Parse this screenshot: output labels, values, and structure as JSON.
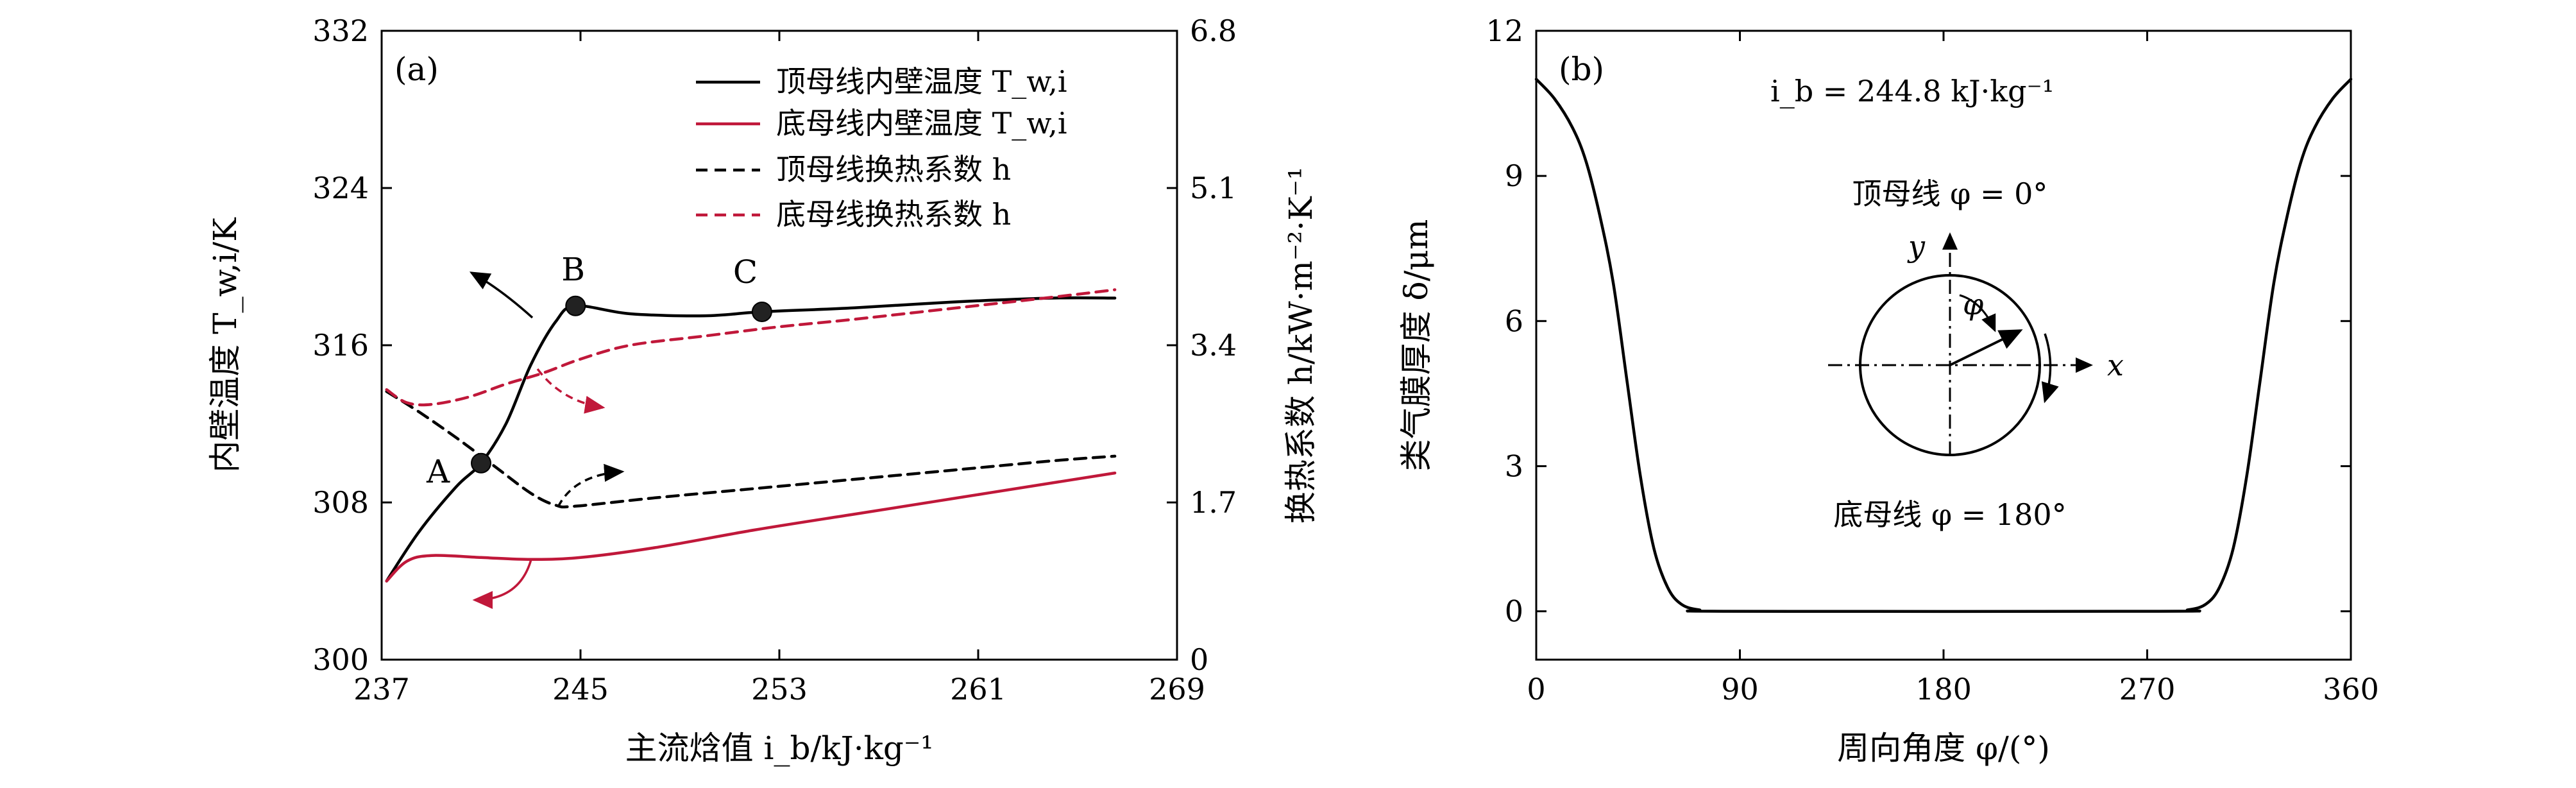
{
  "chart_data": [
    {
      "panel": "(a)",
      "type": "line",
      "xlabel": "主流焓值 i_b/kJ·kg⁻¹",
      "ylabel": "内壁温度 T_w,i/K",
      "ylabel_right": "换热系数 h/kW·m⁻²·K⁻¹",
      "xlim": [
        237,
        269
      ],
      "ylim": [
        300,
        332
      ],
      "ylim_right": [
        0,
        6.8
      ],
      "x_ticks": [
        "237",
        "245",
        "253",
        "261",
        "269"
      ],
      "y_ticks": [
        "300",
        "308",
        "316",
        "324",
        "332"
      ],
      "y_ticks_right": [
        "0",
        "1.7",
        "3.4",
        "5.1",
        "6.8"
      ],
      "legend_position": "top-right",
      "series": [
        {
          "name": "顶母线内壁温度 T_w,i",
          "axis": "left",
          "color": "#000000",
          "style": "solid",
          "points": [
            [
              237.2,
              304.0
            ],
            [
              238.5,
              306.5
            ],
            [
              240.0,
              308.8
            ],
            [
              241.0,
              310.0
            ],
            [
              242.0,
              312.0
            ],
            [
              243.0,
              315.0
            ],
            [
              244.0,
              317.2
            ],
            [
              244.8,
              318.0
            ],
            [
              247.0,
              317.6
            ],
            [
              250.0,
              317.5
            ],
            [
              252.3,
              317.7
            ],
            [
              256.0,
              317.9
            ],
            [
              260.0,
              318.2
            ],
            [
              264.0,
              318.4
            ],
            [
              266.5,
              318.4
            ]
          ]
        },
        {
          "name": "底母线内壁温度 T_w,i",
          "axis": "left",
          "color": "#c0183a",
          "style": "solid",
          "points": [
            [
              237.2,
              304.0
            ],
            [
              238.0,
              305.0
            ],
            [
              239.0,
              305.3
            ],
            [
              241.0,
              305.2
            ],
            [
              243.0,
              305.1
            ],
            [
              245.0,
              305.2
            ],
            [
              248.0,
              305.7
            ],
            [
              252.0,
              306.6
            ],
            [
              256.0,
              307.4
            ],
            [
              260.0,
              308.2
            ],
            [
              264.0,
              309.0
            ],
            [
              266.5,
              309.5
            ]
          ]
        },
        {
          "name": "顶母线换热系数 h",
          "axis": "right",
          "color": "#000000",
          "style": "dashed",
          "points": [
            [
              237.2,
              2.9
            ],
            [
              238.5,
              2.68
            ],
            [
              240.0,
              2.4
            ],
            [
              241.5,
              2.1
            ],
            [
              243.0,
              1.8
            ],
            [
              244.0,
              1.67
            ],
            [
              244.8,
              1.66
            ],
            [
              248.0,
              1.75
            ],
            [
              252.0,
              1.85
            ],
            [
              256.0,
              1.95
            ],
            [
              260.0,
              2.05
            ],
            [
              264.0,
              2.15
            ],
            [
              266.5,
              2.2
            ]
          ]
        },
        {
          "name": "底母线换热系数 h",
          "axis": "right",
          "color": "#c0183a",
          "style": "dashed",
          "points": [
            [
              237.2,
              2.92
            ],
            [
              238.0,
              2.78
            ],
            [
              239.0,
              2.76
            ],
            [
              240.5,
              2.84
            ],
            [
              242.0,
              2.98
            ],
            [
              243.5,
              3.1
            ],
            [
              245.0,
              3.25
            ],
            [
              247.0,
              3.4
            ],
            [
              250.0,
              3.5
            ],
            [
              253.0,
              3.6
            ],
            [
              256.0,
              3.68
            ],
            [
              260.0,
              3.8
            ],
            [
              264.0,
              3.92
            ],
            [
              266.5,
              4.0
            ]
          ]
        }
      ],
      "markers": [
        {
          "label": "A",
          "x": 241.0,
          "y": 310.0
        },
        {
          "label": "B",
          "x": 244.8,
          "y": 318.0
        },
        {
          "label": "C",
          "x": 252.3,
          "y": 317.7
        }
      ]
    },
    {
      "panel": "(b)",
      "type": "line",
      "xlabel": "周向角度 φ/(°)",
      "ylabel": "类气膜厚度 δ/μm",
      "xlim": [
        0,
        360
      ],
      "ylim": [
        -1,
        12
      ],
      "x_ticks": [
        "0",
        "90",
        "180",
        "270",
        "360"
      ],
      "y_ticks": [
        "0",
        "3",
        "6",
        "9",
        "12"
      ],
      "annotation": "i_b = 244.8 kJ·kg⁻¹",
      "series": [
        {
          "name": "",
          "color": "#000000",
          "style": "solid",
          "points": [
            [
              0,
              11.0
            ],
            [
              8,
              10.6
            ],
            [
              16,
              10.0
            ],
            [
              22,
              9.3
            ],
            [
              28,
              8.2
            ],
            [
              34,
              6.8
            ],
            [
              40,
              4.8
            ],
            [
              46,
              2.8
            ],
            [
              52,
              1.3
            ],
            [
              58,
              0.5
            ],
            [
              64,
              0.15
            ],
            [
              72,
              0.03
            ],
            [
              85,
              0
            ],
            [
              275,
              0
            ],
            [
              288,
              0.03
            ],
            [
              296,
              0.15
            ],
            [
              302,
              0.5
            ],
            [
              308,
              1.3
            ],
            [
              314,
              2.8
            ],
            [
              320,
              4.8
            ],
            [
              326,
              6.8
            ],
            [
              332,
              8.2
            ],
            [
              338,
              9.3
            ],
            [
              344,
              10.0
            ],
            [
              352,
              10.6
            ],
            [
              360,
              11.0
            ]
          ]
        }
      ],
      "inset": {
        "top_label": "顶母线 φ = 0°",
        "bottom_label": "底母线 φ = 180°",
        "axis_x": "x",
        "axis_y": "y",
        "angle_symbol": "φ"
      }
    }
  ]
}
